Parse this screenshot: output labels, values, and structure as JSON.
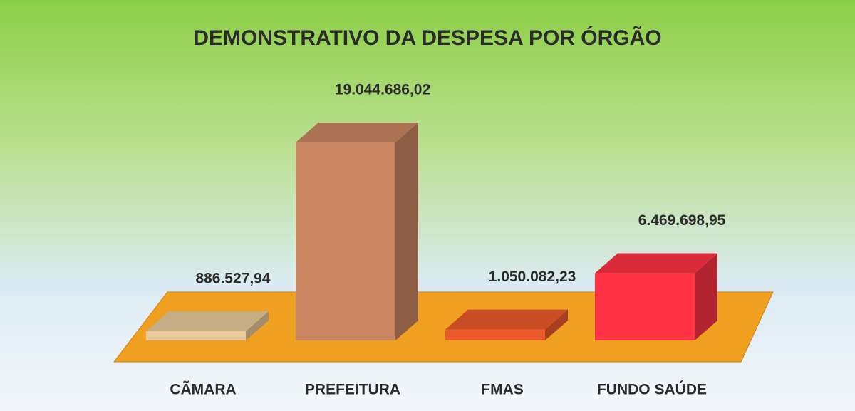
{
  "chart_data": {
    "type": "bar3d",
    "title": "DEMONSTRATIVO DA DESPESA POR ÓRGÃO",
    "categories": [
      "CÃMARA",
      "PREFEITURA",
      "FMAS",
      "FUNDO SAÚDE"
    ],
    "values": [
      886527.94,
      19044686.02,
      1050082.23,
      6469698.95
    ],
    "value_labels": [
      "886.527,94",
      "19.044.686,02",
      "1.050.082,23",
      "6.469.698,95"
    ],
    "colors": [
      "#e9cb9a",
      "#c98663",
      "#ec5a2c",
      "#ff3344"
    ]
  }
}
